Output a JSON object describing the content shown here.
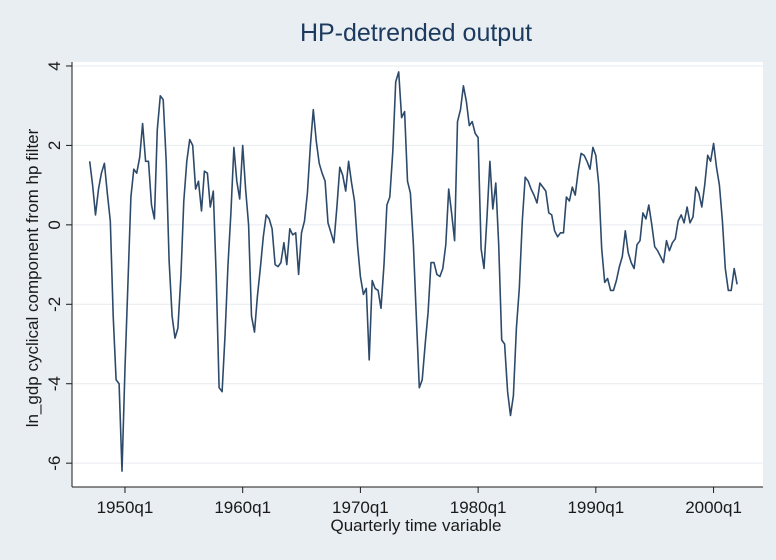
{
  "chart_data": {
    "type": "line",
    "title": "HP-detrended output",
    "xlabel": "Quarterly time variable",
    "ylabel": "ln_gdp cyclical component from hp filter",
    "xlim": [
      1945.5,
      2004.2
    ],
    "ylim": [
      -6.6,
      4.1
    ],
    "x_ticks": [
      {
        "value": 1950,
        "label": "1950q1"
      },
      {
        "value": 1960,
        "label": "1960q1"
      },
      {
        "value": 1970,
        "label": "1970q1"
      },
      {
        "value": 1980,
        "label": "1980q1"
      },
      {
        "value": 1990,
        "label": "1990q1"
      },
      {
        "value": 2000,
        "label": "2000q1"
      }
    ],
    "y_ticks": [
      {
        "value": 4,
        "label": "4"
      },
      {
        "value": 2,
        "label": "2"
      },
      {
        "value": 0,
        "label": "0"
      },
      {
        "value": -2,
        "label": "-2"
      },
      {
        "value": -4,
        "label": "-4"
      },
      {
        "value": -6,
        "label": "-6"
      }
    ],
    "grid": true,
    "colors": {
      "line": "#2e4a6b",
      "plot_bg": "#ffffff",
      "page_bg": "#e9eef2",
      "title": "#1c3a5e"
    },
    "series": [
      {
        "points": [
          [
            1947.0,
            1.6
          ],
          [
            1947.25,
            1.0
          ],
          [
            1947.5,
            0.25
          ],
          [
            1947.75,
            0.9
          ],
          [
            1948.0,
            1.3
          ],
          [
            1948.25,
            1.55
          ],
          [
            1948.5,
            0.8
          ],
          [
            1948.75,
            0.1
          ],
          [
            1949.0,
            -2.3
          ],
          [
            1949.25,
            -3.9
          ],
          [
            1949.5,
            -4.0
          ],
          [
            1949.75,
            -6.2
          ],
          [
            1950.0,
            -3.6
          ],
          [
            1950.25,
            -1.5
          ],
          [
            1950.5,
            0.7
          ],
          [
            1950.75,
            1.4
          ],
          [
            1951.0,
            1.3
          ],
          [
            1951.25,
            1.7
          ],
          [
            1951.5,
            2.55
          ],
          [
            1951.75,
            1.6
          ],
          [
            1952.0,
            1.6
          ],
          [
            1952.25,
            0.5
          ],
          [
            1952.5,
            0.15
          ],
          [
            1952.75,
            2.4
          ],
          [
            1953.0,
            3.25
          ],
          [
            1953.25,
            3.15
          ],
          [
            1953.5,
            1.6
          ],
          [
            1953.75,
            -0.9
          ],
          [
            1954.0,
            -2.3
          ],
          [
            1954.25,
            -2.85
          ],
          [
            1954.5,
            -2.6
          ],
          [
            1954.75,
            -1.3
          ],
          [
            1955.0,
            0.6
          ],
          [
            1955.25,
            1.6
          ],
          [
            1955.5,
            2.15
          ],
          [
            1955.75,
            2.0
          ],
          [
            1956.0,
            0.9
          ],
          [
            1956.25,
            1.1
          ],
          [
            1956.5,
            0.35
          ],
          [
            1956.75,
            1.35
          ],
          [
            1957.0,
            1.3
          ],
          [
            1957.25,
            0.45
          ],
          [
            1957.5,
            0.85
          ],
          [
            1957.75,
            -1.3
          ],
          [
            1958.0,
            -4.1
          ],
          [
            1958.25,
            -4.2
          ],
          [
            1958.5,
            -2.8
          ],
          [
            1958.75,
            -1.0
          ],
          [
            1959.0,
            0.3
          ],
          [
            1959.25,
            1.95
          ],
          [
            1959.5,
            1.1
          ],
          [
            1959.75,
            0.65
          ],
          [
            1960.0,
            2.0
          ],
          [
            1960.25,
            0.9
          ],
          [
            1960.5,
            0.0
          ],
          [
            1960.75,
            -2.3
          ],
          [
            1961.0,
            -2.7
          ],
          [
            1961.25,
            -1.8
          ],
          [
            1961.5,
            -1.1
          ],
          [
            1961.75,
            -0.3
          ],
          [
            1962.0,
            0.25
          ],
          [
            1962.25,
            0.15
          ],
          [
            1962.5,
            -0.1
          ],
          [
            1962.75,
            -1.0
          ],
          [
            1963.0,
            -1.05
          ],
          [
            1963.25,
            -0.95
          ],
          [
            1963.5,
            -0.45
          ],
          [
            1963.75,
            -1.0
          ],
          [
            1964.0,
            -0.1
          ],
          [
            1964.25,
            -0.25
          ],
          [
            1964.5,
            -0.2
          ],
          [
            1964.75,
            -1.25
          ],
          [
            1965.0,
            -0.2
          ],
          [
            1965.25,
            0.1
          ],
          [
            1965.5,
            0.8
          ],
          [
            1965.75,
            2.0
          ],
          [
            1966.0,
            2.9
          ],
          [
            1966.25,
            2.1
          ],
          [
            1966.5,
            1.55
          ],
          [
            1966.75,
            1.3
          ],
          [
            1967.0,
            1.1
          ],
          [
            1967.25,
            0.05
          ],
          [
            1967.5,
            -0.2
          ],
          [
            1967.75,
            -0.45
          ],
          [
            1968.0,
            0.45
          ],
          [
            1968.25,
            1.45
          ],
          [
            1968.5,
            1.25
          ],
          [
            1968.75,
            0.85
          ],
          [
            1969.0,
            1.6
          ],
          [
            1969.25,
            1.05
          ],
          [
            1969.5,
            0.6
          ],
          [
            1969.75,
            -0.5
          ],
          [
            1970.0,
            -1.3
          ],
          [
            1970.25,
            -1.75
          ],
          [
            1970.5,
            -1.6
          ],
          [
            1970.75,
            -3.4
          ],
          [
            1971.0,
            -1.4
          ],
          [
            1971.25,
            -1.6
          ],
          [
            1971.5,
            -1.65
          ],
          [
            1971.75,
            -2.1
          ],
          [
            1972.0,
            -1.0
          ],
          [
            1972.25,
            0.5
          ],
          [
            1972.5,
            0.7
          ],
          [
            1972.75,
            1.85
          ],
          [
            1973.0,
            3.6
          ],
          [
            1973.25,
            3.85
          ],
          [
            1973.5,
            2.7
          ],
          [
            1973.75,
            2.85
          ],
          [
            1974.0,
            1.1
          ],
          [
            1974.25,
            0.8
          ],
          [
            1974.5,
            -0.5
          ],
          [
            1974.75,
            -2.3
          ],
          [
            1975.0,
            -4.1
          ],
          [
            1975.25,
            -3.9
          ],
          [
            1975.5,
            -3.0
          ],
          [
            1975.75,
            -2.2
          ],
          [
            1976.0,
            -0.95
          ],
          [
            1976.25,
            -0.95
          ],
          [
            1976.5,
            -1.25
          ],
          [
            1976.75,
            -1.3
          ],
          [
            1977.0,
            -1.1
          ],
          [
            1977.25,
            -0.5
          ],
          [
            1977.5,
            0.9
          ],
          [
            1977.75,
            0.3
          ],
          [
            1978.0,
            -0.4
          ],
          [
            1978.25,
            2.6
          ],
          [
            1978.5,
            2.9
          ],
          [
            1978.75,
            3.5
          ],
          [
            1979.0,
            3.1
          ],
          [
            1979.25,
            2.5
          ],
          [
            1979.5,
            2.6
          ],
          [
            1979.75,
            2.3
          ],
          [
            1980.0,
            2.2
          ],
          [
            1980.25,
            -0.6
          ],
          [
            1980.5,
            -1.1
          ],
          [
            1980.75,
            0.2
          ],
          [
            1981.0,
            1.6
          ],
          [
            1981.25,
            0.4
          ],
          [
            1981.5,
            1.05
          ],
          [
            1981.75,
            -0.5
          ],
          [
            1982.0,
            -2.9
          ],
          [
            1982.25,
            -3.0
          ],
          [
            1982.5,
            -4.2
          ],
          [
            1982.75,
            -4.8
          ],
          [
            1983.0,
            -4.3
          ],
          [
            1983.25,
            -2.6
          ],
          [
            1983.5,
            -1.6
          ],
          [
            1983.75,
            0.1
          ],
          [
            1984.0,
            1.2
          ],
          [
            1984.25,
            1.1
          ],
          [
            1984.5,
            0.9
          ],
          [
            1984.75,
            0.75
          ],
          [
            1985.0,
            0.55
          ],
          [
            1985.25,
            1.05
          ],
          [
            1985.5,
            0.95
          ],
          [
            1985.75,
            0.85
          ],
          [
            1986.0,
            0.3
          ],
          [
            1986.25,
            0.25
          ],
          [
            1986.5,
            -0.15
          ],
          [
            1986.75,
            -0.3
          ],
          [
            1987.0,
            -0.2
          ],
          [
            1987.25,
            -0.2
          ],
          [
            1987.5,
            0.7
          ],
          [
            1987.75,
            0.6
          ],
          [
            1988.0,
            0.95
          ],
          [
            1988.25,
            0.75
          ],
          [
            1988.5,
            1.35
          ],
          [
            1988.75,
            1.8
          ],
          [
            1989.0,
            1.75
          ],
          [
            1989.25,
            1.6
          ],
          [
            1989.5,
            1.4
          ],
          [
            1989.75,
            1.95
          ],
          [
            1990.0,
            1.75
          ],
          [
            1990.25,
            1.0
          ],
          [
            1990.5,
            -0.6
          ],
          [
            1990.75,
            -1.45
          ],
          [
            1991.0,
            -1.35
          ],
          [
            1991.25,
            -1.65
          ],
          [
            1991.5,
            -1.65
          ],
          [
            1991.75,
            -1.4
          ],
          [
            1992.0,
            -1.05
          ],
          [
            1992.25,
            -0.8
          ],
          [
            1992.5,
            -0.15
          ],
          [
            1992.75,
            -0.7
          ],
          [
            1993.0,
            -0.95
          ],
          [
            1993.25,
            -1.1
          ],
          [
            1993.5,
            -0.5
          ],
          [
            1993.75,
            -0.4
          ],
          [
            1994.0,
            0.3
          ],
          [
            1994.25,
            0.15
          ],
          [
            1994.5,
            0.5
          ],
          [
            1994.75,
            0.0
          ],
          [
            1995.0,
            -0.55
          ],
          [
            1995.25,
            -0.65
          ],
          [
            1995.5,
            -0.8
          ],
          [
            1995.75,
            -0.95
          ],
          [
            1996.0,
            -0.4
          ],
          [
            1996.25,
            -0.65
          ],
          [
            1996.5,
            -0.45
          ],
          [
            1996.75,
            -0.35
          ],
          [
            1997.0,
            0.1
          ],
          [
            1997.25,
            0.25
          ],
          [
            1997.5,
            0.05
          ],
          [
            1997.75,
            0.45
          ],
          [
            1998.0,
            0.05
          ],
          [
            1998.25,
            0.2
          ],
          [
            1998.5,
            0.95
          ],
          [
            1998.75,
            0.8
          ],
          [
            1999.0,
            0.45
          ],
          [
            1999.25,
            1.0
          ],
          [
            1999.5,
            1.75
          ],
          [
            1999.75,
            1.6
          ],
          [
            2000.0,
            2.05
          ],
          [
            2000.25,
            1.45
          ],
          [
            2000.5,
            1.0
          ],
          [
            2000.75,
            0.1
          ],
          [
            2001.0,
            -1.1
          ],
          [
            2001.25,
            -1.65
          ],
          [
            2001.5,
            -1.65
          ],
          [
            2001.75,
            -1.1
          ],
          [
            2002.0,
            -1.5
          ]
        ]
      }
    ]
  }
}
